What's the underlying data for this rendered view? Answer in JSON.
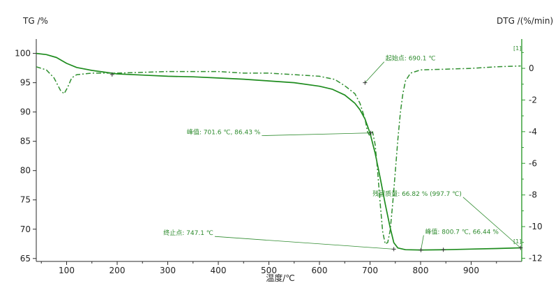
{
  "chart_data": {
    "type": "line",
    "ylabel_left": "TG /%",
    "ylabel_right": "DTG /(%/min)",
    "xlabel": "温度/℃",
    "xlim": [
      40,
      1000
    ],
    "ylim_left": [
      64.5,
      101.5
    ],
    "ylim_right": [
      -12.2,
      1.5
    ],
    "x_ticks": [
      100,
      200,
      300,
      400,
      500,
      600,
      700,
      800,
      900
    ],
    "y_left_ticks": [
      65,
      70,
      75,
      80,
      85,
      90,
      95,
      100
    ],
    "y_right_ticks": [
      0,
      -2,
      -4,
      -6,
      -8,
      -10,
      -12
    ],
    "colors": {
      "tg": "#1e8c1e",
      "dtg": "#2f8f2f",
      "axis": "#2a2a2a",
      "right_axis": "#2e9b2e",
      "annot": "#2e8b2e"
    },
    "series": [
      {
        "name": "TG",
        "axis": "left",
        "style": "solid",
        "points": [
          [
            40,
            100.0
          ],
          [
            60,
            99.8
          ],
          [
            80,
            99.3
          ],
          [
            100,
            98.3
          ],
          [
            120,
            97.6
          ],
          [
            150,
            97.1
          ],
          [
            200,
            96.5
          ],
          [
            250,
            96.3
          ],
          [
            300,
            96.1
          ],
          [
            350,
            96.0
          ],
          [
            400,
            95.8
          ],
          [
            450,
            95.6
          ],
          [
            500,
            95.3
          ],
          [
            550,
            95.0
          ],
          [
            600,
            94.4
          ],
          [
            625,
            93.9
          ],
          [
            650,
            92.9
          ],
          [
            670,
            91.5
          ],
          [
            680,
            90.4
          ],
          [
            690,
            88.8
          ],
          [
            700,
            86.4
          ],
          [
            710,
            83.0
          ],
          [
            720,
            78.8
          ],
          [
            730,
            74.3
          ],
          [
            740,
            70.2
          ],
          [
            747,
            67.7
          ],
          [
            755,
            66.8
          ],
          [
            770,
            66.5
          ],
          [
            800,
            66.45
          ],
          [
            850,
            66.5
          ],
          [
            900,
            66.6
          ],
          [
            950,
            66.7
          ],
          [
            998,
            66.82
          ]
        ]
      },
      {
        "name": "DTG",
        "axis": "right",
        "style": "dashdot",
        "points": [
          [
            40,
            0.1
          ],
          [
            60,
            -0.1
          ],
          [
            75,
            -0.6
          ],
          [
            88,
            -1.4
          ],
          [
            95,
            -1.6
          ],
          [
            102,
            -1.2
          ],
          [
            110,
            -0.6
          ],
          [
            120,
            -0.4
          ],
          [
            150,
            -0.3
          ],
          [
            200,
            -0.3
          ],
          [
            300,
            -0.2
          ],
          [
            400,
            -0.2
          ],
          [
            450,
            -0.3
          ],
          [
            500,
            -0.3
          ],
          [
            550,
            -0.4
          ],
          [
            600,
            -0.5
          ],
          [
            630,
            -0.7
          ],
          [
            650,
            -1.1
          ],
          [
            670,
            -1.6
          ],
          [
            680,
            -2.2
          ],
          [
            690,
            -3.2
          ],
          [
            695,
            -4.0
          ],
          [
            700,
            -4.3
          ],
          [
            705,
            -4.0
          ],
          [
            710,
            -4.8
          ],
          [
            715,
            -6.5
          ],
          [
            720,
            -8.5
          ],
          [
            725,
            -10.3
          ],
          [
            730,
            -11.1
          ],
          [
            735,
            -11.0
          ],
          [
            740,
            -10.2
          ],
          [
            745,
            -8.5
          ],
          [
            750,
            -6.5
          ],
          [
            755,
            -4.5
          ],
          [
            760,
            -2.8
          ],
          [
            765,
            -1.6
          ],
          [
            770,
            -0.8
          ],
          [
            780,
            -0.3
          ],
          [
            800,
            -0.1
          ],
          [
            850,
            -0.05
          ],
          [
            900,
            0.0
          ],
          [
            950,
            0.1
          ],
          [
            998,
            0.15
          ]
        ]
      }
    ],
    "annotations": [
      {
        "text": "起始点: 690.1 ℃",
        "anchor": [
          690.1,
          95.0
        ],
        "label_at": [
          728,
          98.8
        ],
        "axis": "left"
      },
      {
        "text": "峰值: 701.6 ℃, 86.43 %",
        "anchor": [
          701.6,
          86.43
        ],
        "label_at": [
          486,
          86.2
        ],
        "axis": "left"
      },
      {
        "text": "终止点: 747.1 ℃",
        "anchor": [
          747.1,
          66.6
        ],
        "label_at": [
          393,
          69.0
        ],
        "axis": "left"
      },
      {
        "text": "峰值: 800.7 ℃, 66.44 %",
        "anchor": [
          800.7,
          66.44
        ],
        "label_at": [
          806,
          69.2
        ],
        "axis": "left"
      },
      {
        "text": "残留质量: 66.82 % (997.7 ℃)",
        "anchor": [
          997.7,
          66.82
        ],
        "label_at": [
          884,
          75.7
        ],
        "axis": "left"
      }
    ],
    "markers": [
      "[1]",
      "[1]"
    ]
  }
}
